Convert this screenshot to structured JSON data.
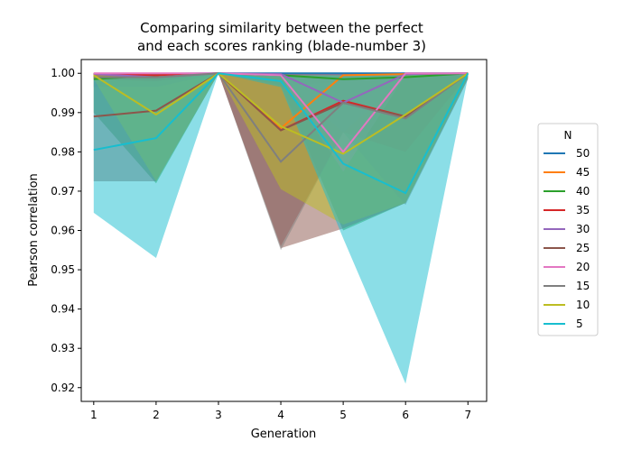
{
  "chart_data": {
    "type": "line",
    "title_line1": "Comparing similarity between the perfect",
    "title_line2": "and each scores ranking (blade-number 3)",
    "xlabel": "Generation",
    "ylabel": "Pearson correlation",
    "x": [
      1,
      2,
      3,
      4,
      5,
      6,
      7
    ],
    "xlim": [
      0.8,
      7.3
    ],
    "ylim": [
      0.9165,
      1.0035
    ],
    "yticks": [
      0.92,
      0.93,
      0.94,
      0.95,
      0.96,
      0.97,
      0.98,
      0.99,
      1.0
    ],
    "ytick_labels": [
      "0.92",
      "0.93",
      "0.94",
      "0.95",
      "0.96",
      "0.97",
      "0.98",
      "0.99",
      "1.00"
    ],
    "grid": false,
    "legend_title": "N",
    "legend_position": "right",
    "series": [
      {
        "name": "50",
        "color": "#1f77b4",
        "values": [
          0.9999,
          0.9999,
          1.0,
          1.0,
          1.0,
          1.0,
          1.0
        ],
        "lower": [
          0.9995,
          0.9995,
          1.0,
          0.9998,
          0.9998,
          0.9998,
          0.9999
        ],
        "upper": [
          1.0,
          1.0,
          1.0,
          1.0,
          1.0,
          1.0,
          1.0
        ]
      },
      {
        "name": "45",
        "color": "#ff7f0e",
        "values": [
          0.9998,
          0.9995,
          1.0,
          0.986,
          0.9995,
          0.9998,
          1.0
        ],
        "lower": [
          0.9985,
          0.998,
          1.0,
          0.9965,
          0.998,
          0.999,
          0.9995
        ],
        "upper": [
          1.0,
          1.0,
          1.0,
          1.0,
          1.0,
          1.0,
          1.0
        ]
      },
      {
        "name": "40",
        "color": "#2ca02c",
        "values": [
          0.9985,
          0.9995,
          1.0,
          0.9995,
          0.9985,
          0.999,
          1.0
        ],
        "lower": [
          0.99,
          0.972,
          1.0,
          0.997,
          0.96,
          0.967,
          0.999
        ],
        "upper": [
          1.0,
          1.0,
          1.0,
          1.0,
          1.0,
          1.0,
          1.0
        ]
      },
      {
        "name": "35",
        "color": "#d62728",
        "values": [
          0.9998,
          0.9995,
          1.0,
          0.9855,
          0.993,
          0.989,
          1.0
        ],
        "lower": [
          0.9985,
          0.998,
          1.0,
          0.956,
          0.985,
          0.98,
          0.9995
        ],
        "upper": [
          1.0,
          1.0,
          1.0,
          1.0,
          1.0,
          1.0,
          1.0
        ]
      },
      {
        "name": "30",
        "color": "#9467bd",
        "values": [
          0.9998,
          0.999,
          1.0,
          0.9998,
          0.9925,
          0.9998,
          1.0
        ],
        "lower": [
          0.999,
          0.998,
          1.0,
          0.999,
          0.985,
          0.999,
          0.9995
        ],
        "upper": [
          1.0,
          1.0,
          1.0,
          1.0,
          1.0,
          1.0,
          1.0
        ]
      },
      {
        "name": "25",
        "color": "#8c564b",
        "values": [
          0.989,
          0.9905,
          1.0,
          0.9855,
          0.9925,
          0.989,
          1.0
        ],
        "lower": [
          0.9725,
          0.9725,
          1.0,
          0.9555,
          0.9605,
          0.967,
          0.9985
        ],
        "upper": [
          0.9995,
          0.9995,
          1.0,
          1.0,
          1.0,
          1.0,
          1.0
        ]
      },
      {
        "name": "20",
        "color": "#e377c2",
        "values": [
          1.0,
          1.0,
          1.0,
          0.9995,
          0.98,
          1.0,
          1.0
        ],
        "lower": [
          0.9995,
          0.9995,
          1.0,
          0.999,
          0.975,
          0.9995,
          0.9995
        ],
        "upper": [
          1.0,
          1.0,
          1.0,
          1.0,
          1.0,
          1.0,
          1.0
        ]
      },
      {
        "name": "15",
        "color": "#7f7f7f",
        "values": [
          0.999,
          0.999,
          1.0,
          0.9775,
          0.9925,
          0.9885,
          1.0
        ],
        "lower": [
          0.9965,
          0.9965,
          1.0,
          0.955,
          0.985,
          0.9665,
          0.9985
        ],
        "upper": [
          1.0,
          1.0,
          1.0,
          1.0,
          1.0,
          1.0,
          1.0
        ]
      },
      {
        "name": "10",
        "color": "#bcbd22",
        "values": [
          0.9995,
          0.9895,
          1.0,
          0.9865,
          0.9795,
          0.9895,
          1.0
        ],
        "lower": [
          0.9985,
          0.9725,
          1.0,
          0.9705,
          0.9615,
          0.967,
          0.999
        ],
        "upper": [
          1.0,
          0.9995,
          1.0,
          0.9995,
          0.9995,
          0.9995,
          1.0
        ]
      },
      {
        "name": "5",
        "color": "#17becf",
        "values": [
          0.9805,
          0.9835,
          1.0,
          0.998,
          0.977,
          0.9695,
          1.0
        ],
        "lower": [
          0.9645,
          0.953,
          1.0,
          0.9965,
          0.958,
          0.921,
          0.999
        ],
        "upper": [
          0.9985,
          0.9995,
          1.0,
          0.9995,
          0.9995,
          0.9995,
          1.0
        ]
      }
    ]
  }
}
